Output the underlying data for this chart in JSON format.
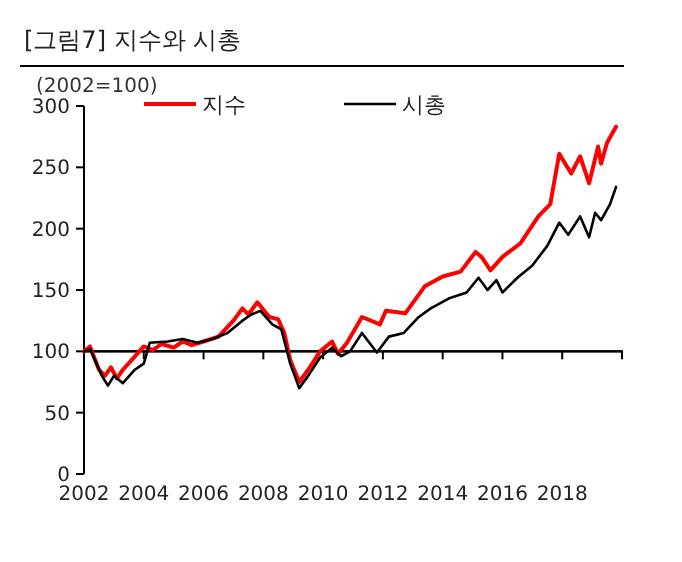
{
  "chart_data": {
    "type": "line",
    "title": "[그림7]   지수와 시총",
    "ylabel": "(2002=100)",
    "xlim": [
      2002,
      2020
    ],
    "xticks": [
      2002,
      2004,
      2006,
      2008,
      2010,
      2012,
      2014,
      2016,
      2018
    ],
    "ylim": [
      0,
      300
    ],
    "yticks": [
      0,
      50,
      100,
      150,
      200,
      250,
      300
    ],
    "ref_lines": [
      {
        "axis": "y",
        "value": 100,
        "color": "#000000"
      }
    ],
    "legend": "top",
    "grid": false,
    "marker": "none",
    "line_style": "solid",
    "series": [
      {
        "name": "지수",
        "color": "#ff0000",
        "x": [
          2002,
          2002.2,
          2002.5,
          2002.7,
          2002.9,
          2003.1,
          2003.3,
          2003.6,
          2004,
          2004.3,
          2004.6,
          2005,
          2005.3,
          2005.6,
          2006,
          2006.5,
          2007,
          2007.3,
          2007.5,
          2007.8,
          2008.2,
          2008.5,
          2008.7,
          2008.9,
          2009.2,
          2009.5,
          2009.9,
          2010.3,
          2010.5,
          2010.8,
          2011.3,
          2011.9,
          2012.1,
          2012.75,
          2013.4,
          2014,
          2014.6,
          2015.1,
          2015.3,
          2015.6,
          2016,
          2016.6,
          2017.2,
          2017.6,
          2017.9,
          2018.3,
          2018.6,
          2018.9,
          2019.2,
          2019.3,
          2019.5,
          2019.8
        ],
        "values": [
          100,
          104,
          85,
          80,
          87,
          78,
          85,
          93,
          104,
          101,
          106,
          103,
          108,
          105,
          108,
          112,
          125,
          135,
          130,
          140,
          128,
          126,
          115,
          93,
          75,
          85,
          100,
          108,
          98,
          107,
          128,
          122,
          133,
          131,
          153,
          161,
          165,
          181,
          177,
          166,
          177,
          188,
          210,
          220,
          261,
          245,
          259,
          237,
          267,
          253,
          270,
          283
        ]
      },
      {
        "name": "시총",
        "color": "#000000",
        "x": [
          2002,
          2002.2,
          2002.6,
          2002.8,
          2003,
          2003.3,
          2003.7,
          2004,
          2004.2,
          2004.8,
          2005.3,
          2005.8,
          2006.3,
          2006.8,
          2007.3,
          2007.6,
          2007.9,
          2008.3,
          2008.6,
          2008.9,
          2009.2,
          2009.5,
          2009.9,
          2010.3,
          2010.6,
          2010.9,
          2011.3,
          2011.8,
          2012.2,
          2012.7,
          2013.2,
          2013.6,
          2014.2,
          2014.8,
          2015.2,
          2015.5,
          2015.8,
          2016,
          2016.5,
          2017,
          2017.5,
          2017.9,
          2018.2,
          2018.6,
          2018.9,
          2019.1,
          2019.3,
          2019.6,
          2019.8
        ],
        "values": [
          100,
          102,
          80,
          72,
          80,
          74,
          85,
          90,
          107,
          108,
          110,
          107,
          110,
          115,
          125,
          130,
          133,
          122,
          118,
          90,
          70,
          80,
          95,
          103,
          96,
          100,
          115,
          99,
          112,
          115,
          128,
          135,
          143,
          148,
          160,
          150,
          158,
          148,
          160,
          170,
          186,
          205,
          195,
          210,
          193,
          213,
          207,
          220,
          234
        ]
      }
    ]
  }
}
